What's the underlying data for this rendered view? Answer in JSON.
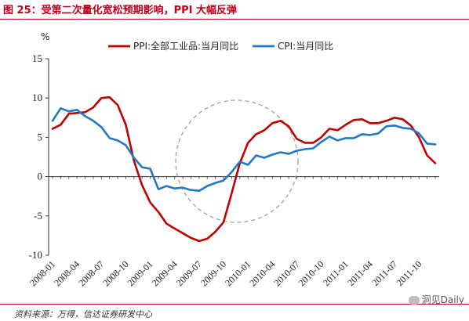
{
  "header": {
    "title": "图 25：受第二次量化宽松预期影响，PPI 大幅反弹"
  },
  "footer": {
    "source": "资料来源：万得，信达证券研发中心",
    "watermark": "洞见Daily"
  },
  "chart_data": {
    "type": "line",
    "ylabel": "%",
    "ylim": [
      -10,
      15
    ],
    "yticks": [
      -10,
      -5,
      0,
      5,
      10,
      15
    ],
    "x_tick_labels": [
      "2008-01",
      "2008-04",
      "2008-07",
      "2008-10",
      "2009-01",
      "2009-04",
      "2009-07",
      "2009-10",
      "2010-01",
      "2010-04",
      "2010-07",
      "2010-10",
      "2011-01",
      "2011-04",
      "2011-07",
      "2011-10"
    ],
    "x": [
      "2008-01",
      "2008-02",
      "2008-03",
      "2008-04",
      "2008-05",
      "2008-06",
      "2008-07",
      "2008-08",
      "2008-09",
      "2008-10",
      "2008-11",
      "2008-12",
      "2009-01",
      "2009-02",
      "2009-03",
      "2009-04",
      "2009-05",
      "2009-06",
      "2009-07",
      "2009-08",
      "2009-09",
      "2009-10",
      "2009-11",
      "2009-12",
      "2010-01",
      "2010-02",
      "2010-03",
      "2010-04",
      "2010-05",
      "2010-06",
      "2010-07",
      "2010-08",
      "2010-09",
      "2010-10",
      "2010-11",
      "2010-12",
      "2011-01",
      "2011-02",
      "2011-03",
      "2011-04",
      "2011-05",
      "2011-06",
      "2011-07",
      "2011-08",
      "2011-09",
      "2011-10",
      "2011-11",
      "2011-12"
    ],
    "series": [
      {
        "name": "PPI:全部工业品:当月同比",
        "color": "#c00000",
        "values": [
          6.1,
          6.6,
          8.0,
          8.1,
          8.2,
          8.8,
          10.0,
          10.1,
          9.1,
          6.6,
          2.0,
          -1.1,
          -3.3,
          -4.5,
          -6.0,
          -6.6,
          -7.2,
          -7.8,
          -8.2,
          -7.9,
          -7.0,
          -5.8,
          -2.1,
          1.7,
          4.3,
          5.4,
          5.9,
          6.8,
          7.1,
          6.4,
          4.8,
          4.3,
          4.3,
          5.0,
          6.1,
          5.9,
          6.6,
          7.2,
          7.3,
          6.8,
          6.8,
          7.1,
          7.5,
          7.3,
          6.5,
          5.0,
          2.7,
          1.7
        ]
      },
      {
        "name": "CPI:当月同比",
        "color": "#1f78c8",
        "values": [
          7.1,
          8.7,
          8.3,
          8.5,
          7.7,
          7.1,
          6.3,
          4.9,
          4.6,
          4.0,
          2.4,
          1.2,
          1.0,
          -1.6,
          -1.2,
          -1.5,
          -1.4,
          -1.7,
          -1.8,
          -1.2,
          -0.8,
          -0.5,
          0.6,
          1.9,
          1.5,
          2.7,
          2.4,
          2.8,
          3.1,
          2.9,
          3.3,
          3.5,
          3.6,
          4.4,
          5.1,
          4.6,
          4.9,
          4.9,
          5.4,
          5.3,
          5.5,
          6.4,
          6.5,
          6.2,
          6.1,
          5.5,
          4.2,
          4.1
        ]
      }
    ],
    "annotation": "dashed-circle-highlight",
    "grid": false,
    "legend_position": "top-center"
  }
}
